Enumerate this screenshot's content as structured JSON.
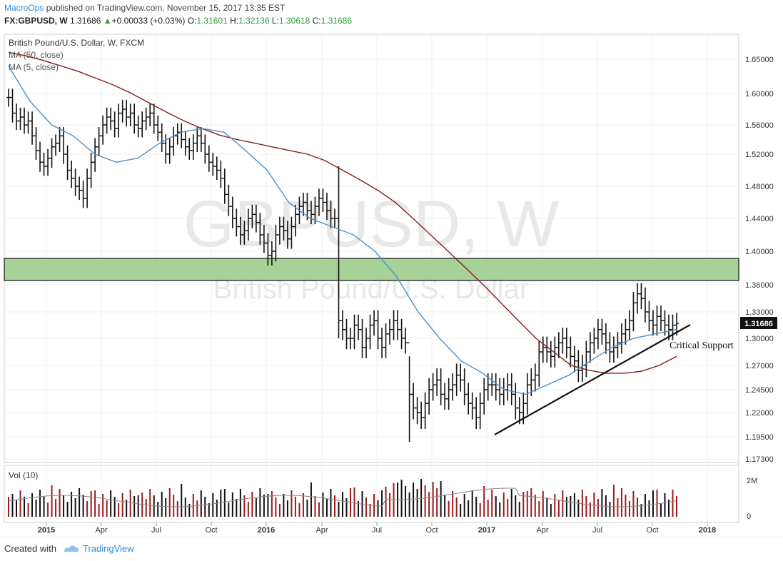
{
  "header": {
    "author": "MacroOps",
    "published": "published on TradingView.com, November 15, 2017 13:35 EST",
    "symbol": "FX:GBPUSD, W",
    "last": "1.31686",
    "arrow": "▲",
    "change": "+0.00033 (+0.03%)",
    "o_label": "O:",
    "o_value": "1.31601",
    "h_label": "H:",
    "h_value": "1.32136",
    "l_label": "L:",
    "l_value": "1.30618",
    "c_label": "C:",
    "c_value": "1.31686"
  },
  "legend": {
    "title": "British Pound/U.S. Dollar, W, FXCM",
    "ma50": "MA (50, close)",
    "ma5": "MA (5, close)"
  },
  "watermark": {
    "symbol": "GBPUSD, W",
    "name": "British Pound/U.S. Dollar"
  },
  "annotation": "Critical Support",
  "last_price_label": "1.31686",
  "volume": {
    "title": "Vol (10)",
    "ticks": [
      "2M",
      "0"
    ]
  },
  "footer": {
    "created": "Created with",
    "brand": "TradingView"
  },
  "colors": {
    "ma50": "#8b1a1a",
    "ma5": "#4a90c8",
    "zone": "#9ccc8c",
    "vol_up": "#9b1b1b",
    "vol_down": "#111111"
  },
  "chart_data": {
    "type": "line",
    "y_ticks": [
      "1.65000",
      "1.60000",
      "1.56000",
      "1.52000",
      "1.48000",
      "1.44000",
      "1.40000",
      "1.36000",
      "1.33000",
      "1.30000",
      "1.27000",
      "1.24500",
      "1.22000",
      "1.19500",
      "1.17300"
    ],
    "x_ticks": [
      "2015",
      "Apr",
      "Jul",
      "Oct",
      "2016",
      "Apr",
      "Jul",
      "Oct",
      "2017",
      "Apr",
      "Jul",
      "Oct",
      "2018"
    ],
    "resistance_zone": [
      1.365,
      1.392
    ],
    "support_line": {
      "from": [
        "2017-01",
        1.195
      ],
      "to": [
        "2017-11",
        1.312
      ]
    },
    "ma50_series": [
      1.66,
      1.655,
      1.648,
      1.64,
      1.632,
      1.622,
      1.612,
      1.6,
      1.588,
      1.576,
      1.565,
      1.555,
      1.546,
      1.54,
      1.535,
      1.53,
      1.525,
      1.52,
      1.512,
      1.5,
      1.488,
      1.475,
      1.46,
      1.44,
      1.42,
      1.4,
      1.38,
      1.36,
      1.34,
      1.32,
      1.3,
      1.285,
      1.27,
      1.265,
      1.262,
      1.262,
      1.264,
      1.27,
      1.28
    ],
    "ma5_series": [
      1.64,
      1.59,
      1.56,
      1.545,
      1.52,
      1.51,
      1.515,
      1.535,
      1.55,
      1.555,
      1.55,
      1.525,
      1.5,
      1.46,
      1.44,
      1.43,
      1.42,
      1.4,
      1.37,
      1.33,
      1.3,
      1.275,
      1.262,
      1.245,
      1.24,
      1.25,
      1.26,
      1.275,
      1.29,
      1.3,
      1.305,
      1.31
    ],
    "price_range": [
      1.17,
      1.665
    ]
  }
}
